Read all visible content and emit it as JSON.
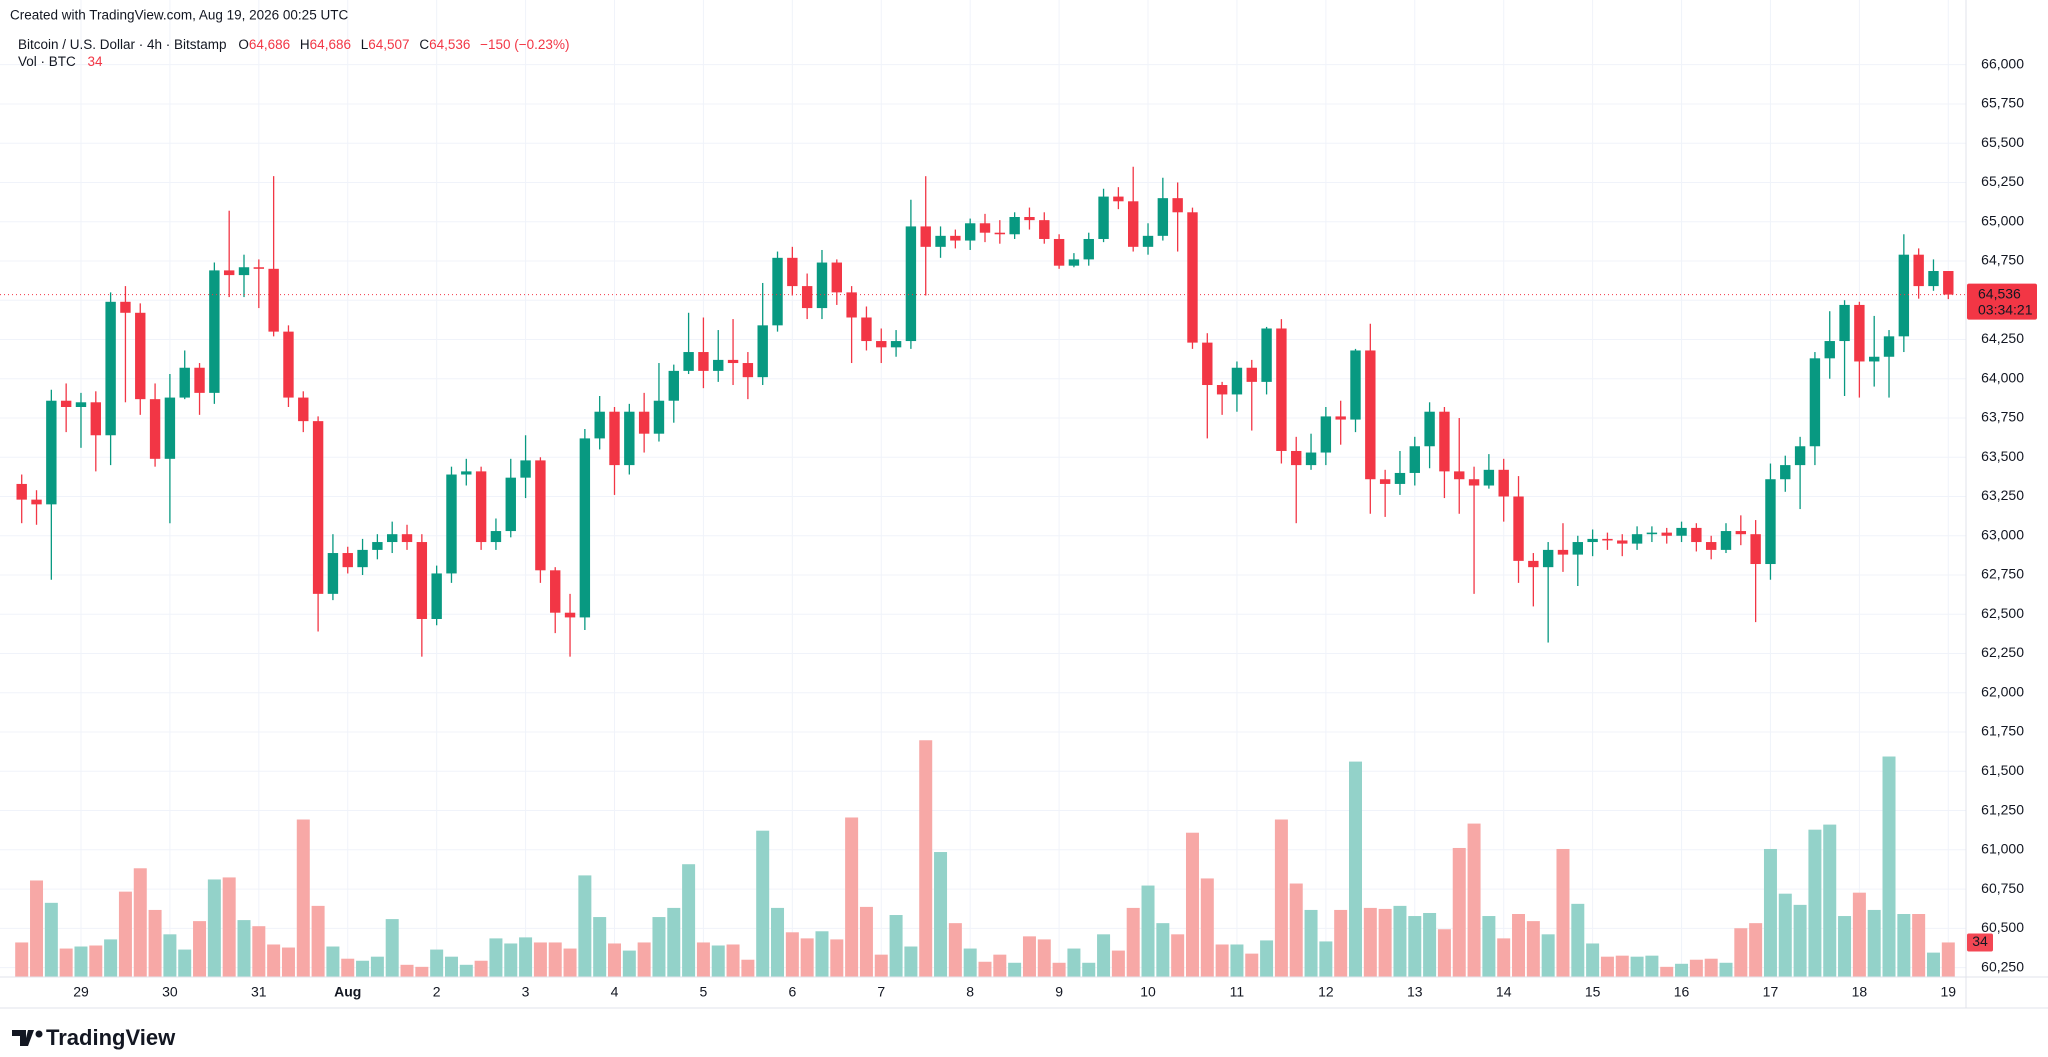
{
  "chart_data": {
    "type": "candlestick",
    "header": "Created with TradingView.com, Aug 19, 2026 00:25 UTC",
    "logo": "TradingView",
    "legend": {
      "symbol": "Bitcoin / U.S. Dollar · 4h · Bitstamp",
      "o": "O",
      "open": "64,686",
      "h": "H",
      "high": "64,686",
      "l": "L",
      "low": "64,507",
      "c": "C",
      "close": "64,536",
      "change": "−150 (−0.23%)",
      "vol_title": "Vol · BTC",
      "volume": "34"
    },
    "countdown": "03:34:21",
    "up_color": "#089981",
    "down_color": "#f23645",
    "volume_up_color": "#93d2c9",
    "volume_down_color": "#f7a8a6",
    "grid": true,
    "categories": [
      null,
      null,
      null,
      null,
      "29",
      null,
      null,
      null,
      null,
      null,
      "30",
      null,
      null,
      null,
      null,
      null,
      "31",
      null,
      null,
      null,
      null,
      null,
      "Aug",
      null,
      null,
      null,
      null,
      null,
      "2",
      null,
      null,
      null,
      null,
      null,
      "3",
      null,
      null,
      null,
      null,
      null,
      "4",
      null,
      null,
      null,
      null,
      null,
      "5",
      null,
      null,
      null,
      null,
      null,
      "6",
      null,
      null,
      null,
      null,
      null,
      "7",
      null,
      null,
      null,
      null,
      null,
      "8",
      null,
      null,
      null,
      null,
      null,
      "9",
      null,
      null,
      null,
      null,
      null,
      "10",
      null,
      null,
      null,
      null,
      null,
      "11",
      null,
      null,
      null,
      null,
      null,
      "12",
      null,
      null,
      null,
      null,
      null,
      "13",
      null,
      null,
      null,
      null,
      null,
      "14",
      null,
      null,
      null,
      null,
      null,
      "15",
      null,
      null,
      null,
      null,
      null,
      "16",
      null,
      null,
      null,
      null,
      null,
      "17",
      null,
      null,
      null,
      null,
      null,
      "18",
      null,
      null,
      null,
      null,
      null,
      "19"
    ],
    "open": [
      63330,
      63230,
      63200,
      63860,
      63820,
      63850,
      63640,
      64490,
      64420,
      63870,
      63490,
      63880,
      64070,
      63910,
      64690,
      64660,
      64710,
      64700,
      64300,
      63880,
      63730,
      62630,
      62890,
      62800,
      62910,
      62960,
      63010,
      62960,
      62470,
      62760,
      63390,
      63410,
      62960,
      63030,
      63370,
      63480,
      62780,
      62510,
      62480,
      63620,
      63790,
      63450,
      63790,
      63650,
      63860,
      64050,
      64170,
      64050,
      64120,
      64100,
      64010,
      64340,
      64770,
      64590,
      64450,
      64740,
      64550,
      64390,
      64240,
      64200,
      64240,
      64970,
      64840,
      64910,
      64880,
      64990,
      64930,
      64920,
      65030,
      65010,
      64890,
      64720,
      64760,
      64890,
      65160,
      65130,
      64840,
      64910,
      65150,
      65060,
      64230,
      63960,
      63900,
      64070,
      63980,
      64320,
      63540,
      63450,
      63530,
      63760,
      63740,
      64180,
      63360,
      63330,
      63400,
      63570,
      63790,
      63410,
      63360,
      63320,
      63420,
      63250,
      62840,
      62800,
      62910,
      62880,
      62960,
      62980,
      62970,
      62950,
      63010,
      63020,
      63000,
      63050,
      62960,
      62910,
      63030,
      63010,
      62820,
      63360,
      63450,
      63570,
      64130,
      64240,
      64470,
      64110,
      64140,
      64270,
      64790,
      64590,
      64686
    ],
    "high": [
      63390,
      63290,
      63930,
      63970,
      63910,
      63920,
      64550,
      64590,
      64480,
      63970,
      64030,
      64180,
      64100,
      64740,
      65070,
      64790,
      64760,
      65290,
      64340,
      63920,
      63760,
      63010,
      62930,
      62980,
      63010,
      63090,
      63070,
      63010,
      62810,
      63440,
      63490,
      63440,
      63110,
      63490,
      63640,
      63500,
      62800,
      62630,
      63680,
      63890,
      63820,
      63840,
      63910,
      64100,
      64090,
      64420,
      64390,
      64310,
      64380,
      64170,
      64610,
      64810,
      64840,
      64670,
      64820,
      64760,
      64590,
      64460,
      64320,
      64310,
      65140,
      65290,
      64970,
      64950,
      65020,
      65050,
      65010,
      65060,
      65090,
      65060,
      64920,
      64800,
      64930,
      65210,
      65220,
      65350,
      64990,
      65280,
      65250,
      65090,
      64290,
      63980,
      64110,
      64120,
      64330,
      64380,
      63630,
      63650,
      63820,
      63860,
      64190,
      64350,
      63420,
      63540,
      63630,
      63850,
      63820,
      63750,
      63440,
      63520,
      63490,
      63380,
      62890,
      62960,
      63080,
      63000,
      63040,
      63020,
      63010,
      63060,
      63060,
      63050,
      63090,
      63080,
      63000,
      63080,
      63130,
      63100,
      63460,
      63510,
      63630,
      64170,
      64430,
      64500,
      64490,
      64400,
      64310,
      64920,
      64830,
      64760,
      64686
    ],
    "low": [
      63080,
      63070,
      62720,
      63660,
      63560,
      63410,
      63450,
      63850,
      63770,
      63440,
      63080,
      63870,
      63770,
      63840,
      64520,
      64520,
      64450,
      64270,
      63820,
      63660,
      62390,
      62590,
      62760,
      62750,
      62850,
      62890,
      62910,
      62230,
      62430,
      62700,
      63320,
      62910,
      62910,
      62990,
      63240,
      62700,
      62380,
      62230,
      62400,
      63550,
      63260,
      63390,
      63530,
      63600,
      63720,
      64030,
      63940,
      63980,
      63960,
      63870,
      63960,
      64300,
      64530,
      64380,
      64380,
      64470,
      64100,
      64180,
      64100,
      64140,
      64190,
      64530,
      64770,
      64830,
      64820,
      64870,
      64860,
      64890,
      64950,
      64860,
      64700,
      64710,
      64720,
      64870,
      65080,
      64810,
      64790,
      64880,
      64810,
      64190,
      63620,
      63770,
      63790,
      63670,
      63900,
      63460,
      63080,
      63420,
      63450,
      63580,
      63660,
      63140,
      63120,
      63260,
      63320,
      63430,
      63240,
      63140,
      62630,
      63300,
      63090,
      62700,
      62550,
      62320,
      62770,
      62680,
      62870,
      62910,
      62870,
      62910,
      62960,
      62950,
      62960,
      62900,
      62850,
      62890,
      62940,
      62450,
      62720,
      63280,
      63170,
      63450,
      64000,
      63890,
      63880,
      63950,
      63880,
      64170,
      64510,
      64560,
      64507
    ],
    "close": [
      63230,
      63200,
      63860,
      63820,
      63850,
      63640,
      64490,
      64420,
      63870,
      63490,
      63880,
      64070,
      63910,
      64690,
      64660,
      64710,
      64700,
      64300,
      63880,
      63730,
      62630,
      62890,
      62800,
      62910,
      62960,
      63010,
      62960,
      62470,
      62760,
      63390,
      63410,
      62960,
      63030,
      63370,
      63480,
      62780,
      62510,
      62480,
      63620,
      63790,
      63450,
      63790,
      63650,
      63860,
      64050,
      64170,
      64050,
      64120,
      64100,
      64010,
      64340,
      64770,
      64590,
      64450,
      64740,
      64550,
      64390,
      64240,
      64200,
      64240,
      64970,
      64840,
      64910,
      64880,
      64990,
      64930,
      64920,
      65030,
      65010,
      64890,
      64720,
      64760,
      64890,
      65160,
      65130,
      64840,
      64910,
      65150,
      65060,
      64230,
      63960,
      63900,
      64070,
      63980,
      64320,
      63540,
      63450,
      63530,
      63760,
      63740,
      64180,
      63360,
      63330,
      63400,
      63570,
      63790,
      63410,
      63360,
      63320,
      63420,
      63250,
      62840,
      62800,
      62910,
      62880,
      62960,
      62980,
      62970,
      62950,
      63010,
      63020,
      63000,
      63050,
      62960,
      62910,
      63030,
      63010,
      62820,
      63360,
      63450,
      63570,
      64130,
      64240,
      64470,
      64110,
      64140,
      64270,
      64790,
      64590,
      64686,
      64536
    ],
    "volume": [
      34,
      95,
      73,
      28,
      30,
      31,
      37,
      84,
      107,
      66,
      42,
      27,
      55,
      96,
      98,
      56,
      50,
      32,
      29,
      155,
      70,
      30,
      18,
      16,
      20,
      57,
      12,
      10,
      27,
      20,
      12,
      16,
      38,
      33,
      39,
      34,
      34,
      28,
      100,
      59,
      33,
      26,
      34,
      59,
      68,
      111,
      34,
      31,
      32,
      17,
      144,
      68,
      44,
      38,
      45,
      37,
      157,
      69,
      22,
      61,
      30,
      233,
      123,
      53,
      28,
      15,
      22,
      14,
      40,
      37,
      14,
      28,
      14,
      42,
      26,
      68,
      90,
      53,
      42,
      142,
      97,
      32,
      32,
      23,
      36,
      155,
      92,
      66,
      35,
      66,
      212,
      68,
      67,
      70,
      60,
      63,
      47,
      127,
      151,
      60,
      38,
      62,
      55,
      42,
      126,
      72,
      33,
      20,
      21,
      20,
      21,
      10,
      13,
      17,
      18,
      14,
      48,
      53,
      126,
      82,
      71,
      145,
      150,
      60,
      83,
      66,
      217,
      62,
      62,
      24,
      34
    ],
    "ylim": [
      60190,
      66240
    ],
    "volume_lim": [
      0,
      935
    ],
    "yticks": [
      {
        "value": 60250,
        "label": "60,250"
      },
      {
        "value": 60500,
        "label": "60,500"
      },
      {
        "value": 60750,
        "label": "60,750"
      },
      {
        "value": 61000,
        "label": "61,000"
      },
      {
        "value": 61250,
        "label": "61,250"
      },
      {
        "value": 61500,
        "label": "61,500"
      },
      {
        "value": 61750,
        "label": "61,750"
      },
      {
        "value": 62000,
        "label": "62,000"
      },
      {
        "value": 62250,
        "label": "62,250"
      },
      {
        "value": 62500,
        "label": "62,500"
      },
      {
        "value": 62750,
        "label": "62,750"
      },
      {
        "value": 63000,
        "label": "63,000"
      },
      {
        "value": 63250,
        "label": "63,250"
      },
      {
        "value": 63500,
        "label": "63,500"
      },
      {
        "value": 63750,
        "label": "63,750"
      },
      {
        "value": 64000,
        "label": "64,000"
      },
      {
        "value": 64250,
        "label": "64,250"
      },
      {
        "value": 64500,
        "label": "64,500"
      },
      {
        "value": 64750,
        "label": "64,750"
      },
      {
        "value": 65000,
        "label": "65,000"
      },
      {
        "value": 65250,
        "label": "65,250"
      },
      {
        "value": 65500,
        "label": "65,500"
      },
      {
        "value": 65750,
        "label": "65,750"
      },
      {
        "value": 66000,
        "label": "66,000"
      }
    ]
  }
}
